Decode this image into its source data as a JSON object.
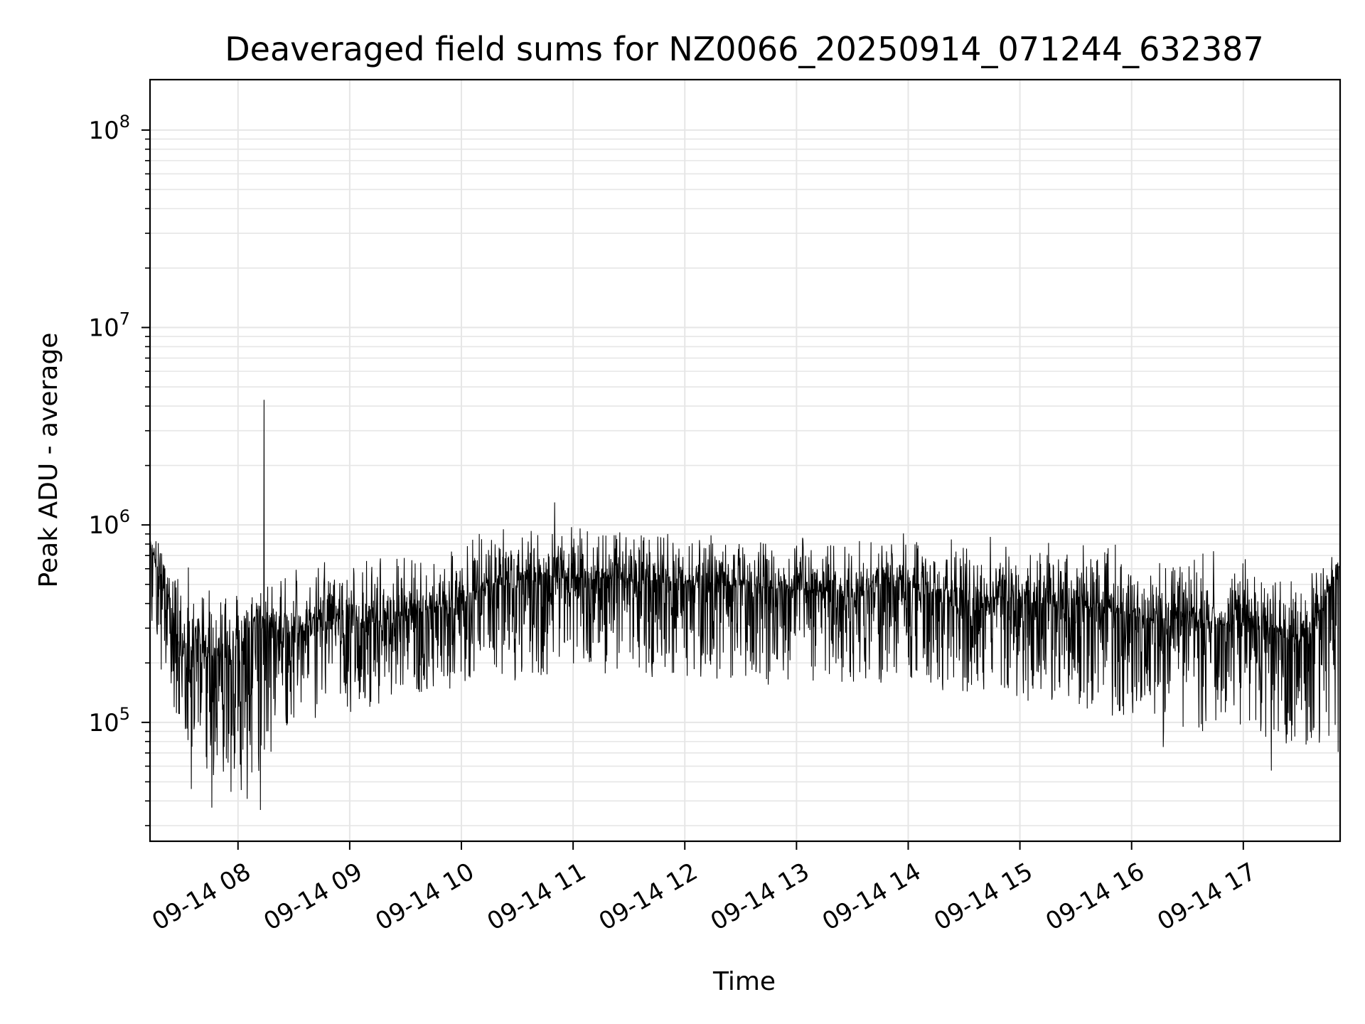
{
  "chart_data": {
    "type": "line",
    "title": "Deaveraged field sums for NZ0066_20250914_071244_632387",
    "xlabel": "Time",
    "ylabel": "Peak ADU - average",
    "y_scale": "log",
    "ylim": [
      25000,
      180000000
    ],
    "xlim": [
      "2025-09-14 07:12:44",
      "2025-09-14 17:52:00"
    ],
    "grid": true,
    "line_color": "#000000",
    "grid_color": "#e6e6e6",
    "x_ticks": [
      {
        "t": "2025-09-14 08:00",
        "label": "09-14 08"
      },
      {
        "t": "2025-09-14 09:00",
        "label": "09-14 09"
      },
      {
        "t": "2025-09-14 10:00",
        "label": "09-14 10"
      },
      {
        "t": "2025-09-14 11:00",
        "label": "09-14 11"
      },
      {
        "t": "2025-09-14 12:00",
        "label": "09-14 12"
      },
      {
        "t": "2025-09-14 13:00",
        "label": "09-14 13"
      },
      {
        "t": "2025-09-14 14:00",
        "label": "09-14 14"
      },
      {
        "t": "2025-09-14 15:00",
        "label": "09-14 15"
      },
      {
        "t": "2025-09-14 16:00",
        "label": "09-14 16"
      },
      {
        "t": "2025-09-14 17:00",
        "label": "09-14 17"
      }
    ],
    "y_ticks": [
      {
        "value": 100000,
        "base": "10",
        "exp": "5"
      },
      {
        "value": 1000000,
        "base": "10",
        "exp": "6"
      },
      {
        "value": 10000000,
        "base": "10",
        "exp": "7"
      },
      {
        "value": 100000000,
        "base": "10",
        "exp": "8"
      }
    ],
    "series": [
      {
        "x": [
          "2025-09-14 07:13",
          "2025-09-14 07:20",
          "2025-09-14 07:30",
          "2025-09-14 07:40",
          "2025-09-14 07:50",
          "2025-09-14 08:00",
          "2025-09-14 08:10",
          "2025-09-14 08:20",
          "2025-09-14 08:30",
          "2025-09-14 08:40",
          "2025-09-14 08:50",
          "2025-09-14 09:00",
          "2025-09-14 09:15",
          "2025-09-14 09:30",
          "2025-09-14 09:45",
          "2025-09-14 10:00",
          "2025-09-14 10:15",
          "2025-09-14 10:30",
          "2025-09-14 10:45",
          "2025-09-14 11:00",
          "2025-09-14 11:15",
          "2025-09-14 11:30",
          "2025-09-14 11:45",
          "2025-09-14 12:00",
          "2025-09-14 12:15",
          "2025-09-14 12:30",
          "2025-09-14 12:45",
          "2025-09-14 13:00",
          "2025-09-14 13:15",
          "2025-09-14 13:30",
          "2025-09-14 13:45",
          "2025-09-14 14:00",
          "2025-09-14 14:15",
          "2025-09-14 14:30",
          "2025-09-14 14:45",
          "2025-09-14 15:00",
          "2025-09-14 15:15",
          "2025-09-14 15:30",
          "2025-09-14 15:45",
          "2025-09-14 16:00",
          "2025-09-14 16:15",
          "2025-09-14 16:30",
          "2025-09-14 16:45",
          "2025-09-14 17:00",
          "2025-09-14 17:15",
          "2025-09-14 17:30",
          "2025-09-14 17:40",
          "2025-09-14 17:51"
        ],
        "y": [
          800000,
          450000,
          220000,
          250000,
          200000,
          230000,
          350000,
          300000,
          280000,
          320000,
          330000,
          300000,
          320000,
          340000,
          380000,
          420000,
          480000,
          520000,
          560000,
          520000,
          530000,
          540000,
          520000,
          500000,
          500000,
          490000,
          480000,
          470000,
          460000,
          420000,
          480000,
          470000,
          440000,
          430000,
          430000,
          400000,
          410000,
          390000,
          370000,
          350000,
          320000,
          330000,
          310000,
          320000,
          300000,
          250000,
          350000,
          600000
        ]
      }
    ],
    "envelope": {
      "x": [
        "2025-09-14 07:13",
        "2025-09-14 07:30",
        "2025-09-14 07:45",
        "2025-09-14 08:00",
        "2025-09-14 08:30",
        "2025-09-14 09:00",
        "2025-09-14 09:30",
        "2025-09-14 10:00",
        "2025-09-14 10:30",
        "2025-09-14 11:00",
        "2025-09-14 11:30",
        "2025-09-14 12:00",
        "2025-09-14 12:30",
        "2025-09-14 13:00",
        "2025-09-14 13:30",
        "2025-09-14 14:00",
        "2025-09-14 14:30",
        "2025-09-14 15:00",
        "2025-09-14 15:30",
        "2025-09-14 16:00",
        "2025-09-14 16:30",
        "2025-09-14 17:00",
        "2025-09-14 17:30",
        "2025-09-14 17:51"
      ],
      "high": [
        950000,
        700000,
        500000,
        480000,
        650000,
        750000,
        800000,
        900000,
        1000000,
        1100000,
        1050000,
        1000000,
        950000,
        900000,
        900000,
        950000,
        950000,
        900000,
        850000,
        800000,
        750000,
        750000,
        650000,
        750000
      ],
      "low": [
        250000,
        90000,
        50000,
        40000,
        100000,
        110000,
        130000,
        150000,
        160000,
        170000,
        170000,
        165000,
        160000,
        150000,
        160000,
        155000,
        140000,
        130000,
        120000,
        100000,
        85000,
        90000,
        70000,
        70000
      ]
    },
    "spikes": [
      {
        "x": "2025-09-14 08:14",
        "y": 4300000
      },
      {
        "x": "2025-09-14 10:50",
        "y": 1300000
      },
      {
        "x": "2025-09-14 07:46",
        "y": 37000
      },
      {
        "x": "2025-09-14 08:12",
        "y": 36000
      },
      {
        "x": "2025-09-14 08:05",
        "y": 41000
      },
      {
        "x": "2025-09-14 07:35",
        "y": 46000
      },
      {
        "x": "2025-09-14 17:15",
        "y": 57000
      },
      {
        "x": "2025-09-14 16:17",
        "y": 75000
      }
    ]
  }
}
